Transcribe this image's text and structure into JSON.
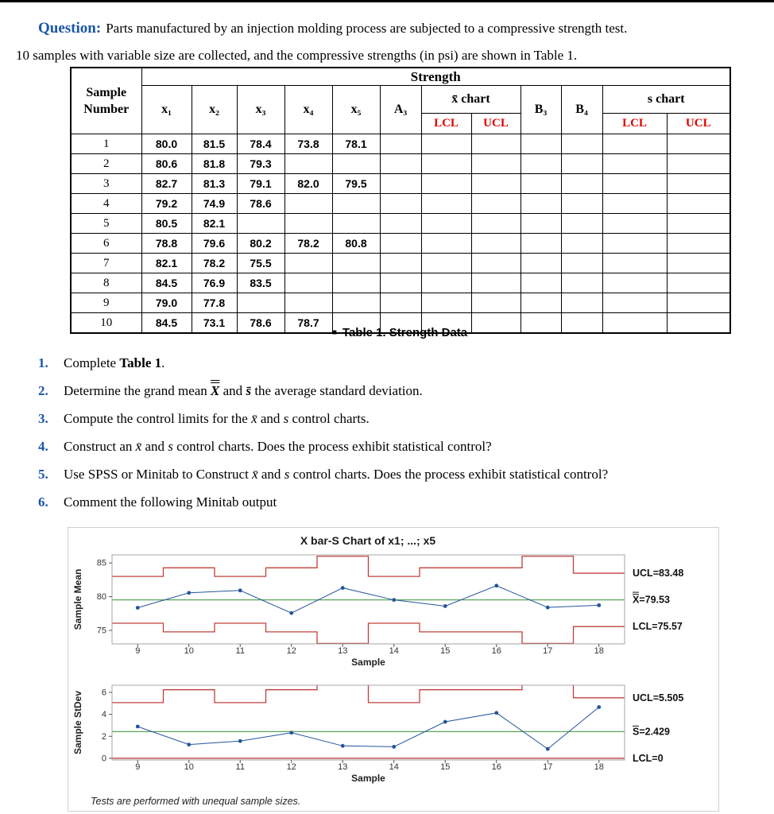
{
  "header": {
    "question_label": "Question:",
    "question_text": "Parts manufactured by an injection molding process are subjected to a compressive strength test.",
    "intro": "10 samples with variable size are collected, and the compressive strengths (in psi) are shown in Table 1."
  },
  "table": {
    "strength": "Strength",
    "sample_line1": "Sample",
    "sample_line2": "Number",
    "columns": [
      "x₁",
      "x₂",
      "x₃",
      "x₄",
      "x₅"
    ],
    "a3": "A₃",
    "xbar_chart": "x̄ chart",
    "b3": "B₃",
    "b4": "B₄",
    "s_chart": "s chart",
    "lcl": "LCL",
    "ucl": "UCL",
    "rows": [
      {
        "sample": "1",
        "values": [
          "80.0",
          "81.5",
          "78.4",
          "73.8",
          "78.1"
        ]
      },
      {
        "sample": "2",
        "values": [
          "80.6",
          "81.8",
          "79.3",
          "",
          ""
        ]
      },
      {
        "sample": "3",
        "values": [
          "82.7",
          "81.3",
          "79.1",
          "82.0",
          "79.5"
        ]
      },
      {
        "sample": "4",
        "values": [
          "79.2",
          "74.9",
          "78.6",
          "",
          ""
        ]
      },
      {
        "sample": "5",
        "values": [
          "80.5",
          "82.1",
          "",
          "",
          ""
        ]
      },
      {
        "sample": "6",
        "values": [
          "78.8",
          "79.6",
          "80.2",
          "78.2",
          "80.8"
        ]
      },
      {
        "sample": "7",
        "values": [
          "82.1",
          "78.2",
          "75.5",
          "",
          ""
        ]
      },
      {
        "sample": "8",
        "values": [
          "84.5",
          "76.9",
          "83.5",
          "",
          ""
        ]
      },
      {
        "sample": "9",
        "values": [
          "79.0",
          "77.8",
          "",
          "",
          ""
        ]
      },
      {
        "sample": "10",
        "values": [
          "84.5",
          "73.1",
          "78.6",
          "78.7",
          ""
        ]
      }
    ],
    "caption_marker": "■",
    "caption": "Table 1. Strength Data"
  },
  "questions": [
    {
      "num": "1.",
      "parts": [
        {
          "t": "Complete ",
          "b": false
        },
        {
          "t": "Table 1",
          "b": true
        },
        {
          "t": ".",
          "b": false
        }
      ]
    },
    {
      "num": "2.",
      "parts": [
        {
          "t": "Determine the grand mean ",
          "b": false
        },
        {
          "t": "X",
          "b": true,
          "i": true,
          "cls": "dbar"
        },
        {
          "t": " and ",
          "b": false
        },
        {
          "t": "s̄",
          "b": true,
          "i": true
        },
        {
          "t": " the average standard deviation.",
          "b": false
        }
      ]
    },
    {
      "num": "3.",
      "parts": [
        {
          "t": "Compute the control limits for the ",
          "b": false
        },
        {
          "t": "x̄",
          "i": true
        },
        {
          "t": " and ",
          "b": false
        },
        {
          "t": "s",
          "i": true
        },
        {
          "t": " control charts.",
          "b": false
        }
      ]
    },
    {
      "num": "4.",
      "parts": [
        {
          "t": "Construct an ",
          "b": false
        },
        {
          "t": "x̄",
          "i": true
        },
        {
          "t": " and ",
          "b": false
        },
        {
          "t": "s",
          "i": true
        },
        {
          "t": " control charts. Does the process exhibit statistical control?",
          "b": false
        }
      ]
    },
    {
      "num": "5.",
      "parts": [
        {
          "t": "Use SPSS or Minitab to Construct ",
          "b": false
        },
        {
          "t": "x̄",
          "i": true
        },
        {
          "t": " and ",
          "b": false
        },
        {
          "t": "s",
          "i": true
        },
        {
          "t": " control charts. Does the process exhibit statistical control?",
          "b": false
        }
      ]
    },
    {
      "num": "6.",
      "parts": [
        {
          "t": "Comment the following Minitab output",
          "b": false
        }
      ]
    }
  ],
  "chart_data": {
    "type": "line",
    "title": "X bar-S Chart of x1; ...; x5",
    "footnote": "Tests are performed with unequal sample sizes.",
    "xlabel": "Sample",
    "x": [
      9,
      10,
      11,
      12,
      13,
      14,
      15,
      16,
      17,
      18
    ],
    "panels": [
      {
        "ylabel": "Sample Mean",
        "values": [
          78.36,
          80.57,
          80.92,
          77.57,
          81.3,
          79.52,
          78.6,
          81.63,
          78.4,
          78.73
        ],
        "center": 79.53,
        "ucl": [
          83.0,
          84.28,
          83.0,
          84.28,
          85.99,
          83.0,
          84.28,
          84.28,
          85.99,
          83.48
        ],
        "lcl": [
          76.06,
          74.78,
          76.06,
          74.78,
          73.07,
          76.06,
          74.78,
          74.78,
          73.07,
          75.57
        ],
        "yticks": [
          75,
          80,
          85
        ],
        "ylim": [
          73.0,
          86.2
        ],
        "labels": {
          "ucl": "UCL=83.48",
          "center": "X̿=79.53",
          "lcl": "LCL=75.57"
        }
      },
      {
        "ylabel": "Sample StDev",
        "values": [
          2.89,
          1.25,
          1.57,
          2.33,
          1.13,
          1.05,
          3.32,
          4.13,
          0.85,
          4.66
        ],
        "center": 2.429,
        "ucl": [
          5.07,
          6.24,
          5.07,
          6.24,
          7.94,
          5.07,
          6.24,
          6.24,
          7.94,
          5.505
        ],
        "lcl": [
          0,
          0,
          0,
          0,
          0,
          0,
          0,
          0,
          0,
          0
        ],
        "yticks": [
          0,
          2,
          4,
          6
        ],
        "ylim": [
          -0.15,
          6.65
        ],
        "labels": {
          "ucl": "UCL=5.505",
          "center": "S̄=2.429",
          "lcl": "LCL=0"
        }
      }
    ]
  },
  "colors": {
    "accent_blue": "#1b55a8",
    "accent_red": "#e00000",
    "point_blue": "#24549c",
    "limit_red": "#c0403c",
    "center_green": "#5aa45a",
    "frame_gray": "#a6a6a6"
  }
}
